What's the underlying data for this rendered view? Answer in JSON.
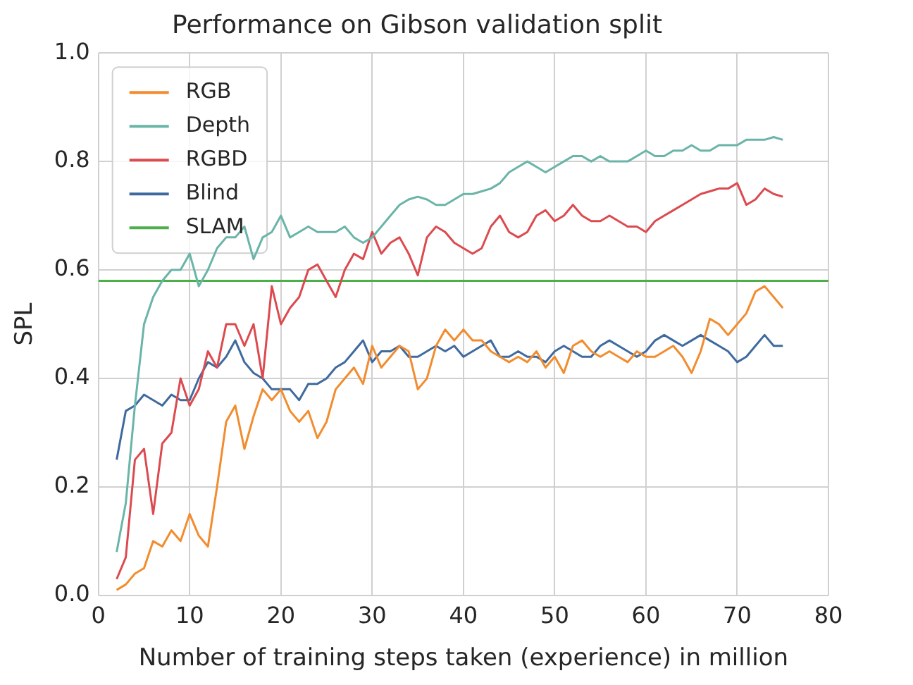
{
  "chart_data": {
    "type": "line",
    "title": "Performance on Gibson validation split",
    "xlabel": "Number of training steps taken (experience) in million",
    "ylabel": "SPL",
    "x": [
      2,
      3,
      4,
      5,
      6,
      7,
      8,
      9,
      10,
      11,
      12,
      13,
      14,
      15,
      16,
      17,
      18,
      19,
      20,
      21,
      22,
      23,
      24,
      25,
      26,
      27,
      28,
      29,
      30,
      31,
      32,
      33,
      34,
      35,
      36,
      37,
      38,
      39,
      40,
      41,
      42,
      43,
      44,
      45,
      46,
      47,
      48,
      49,
      50,
      51,
      52,
      53,
      54,
      55,
      56,
      57,
      58,
      59,
      60,
      61,
      62,
      63,
      64,
      65,
      66,
      67,
      68,
      69,
      70,
      71,
      72,
      73,
      74,
      75
    ],
    "series": [
      {
        "name": "RGB",
        "color": "#f28c2e",
        "values": [
          0.01,
          0.02,
          0.04,
          0.05,
          0.1,
          0.09,
          0.12,
          0.1,
          0.15,
          0.11,
          0.09,
          0.2,
          0.32,
          0.35,
          0.27,
          0.33,
          0.38,
          0.36,
          0.38,
          0.34,
          0.32,
          0.34,
          0.29,
          0.32,
          0.38,
          0.4,
          0.42,
          0.39,
          0.46,
          0.42,
          0.44,
          0.46,
          0.45,
          0.38,
          0.4,
          0.46,
          0.49,
          0.47,
          0.49,
          0.47,
          0.47,
          0.45,
          0.44,
          0.43,
          0.44,
          0.43,
          0.45,
          0.42,
          0.44,
          0.41,
          0.46,
          0.47,
          0.45,
          0.44,
          0.45,
          0.44,
          0.43,
          0.45,
          0.44,
          0.44,
          0.45,
          0.46,
          0.44,
          0.41,
          0.45,
          0.51,
          0.5,
          0.48,
          0.5,
          0.52,
          0.56,
          0.57,
          0.55,
          0.53
        ]
      },
      {
        "name": "Depth",
        "color": "#6ab4a8",
        "values": [
          0.08,
          0.17,
          0.35,
          0.5,
          0.55,
          0.58,
          0.6,
          0.6,
          0.63,
          0.57,
          0.6,
          0.64,
          0.66,
          0.66,
          0.68,
          0.62,
          0.66,
          0.67,
          0.7,
          0.66,
          0.67,
          0.68,
          0.67,
          0.67,
          0.67,
          0.68,
          0.66,
          0.65,
          0.66,
          0.68,
          0.7,
          0.72,
          0.73,
          0.735,
          0.73,
          0.72,
          0.72,
          0.73,
          0.74,
          0.74,
          0.745,
          0.75,
          0.76,
          0.78,
          0.79,
          0.8,
          0.79,
          0.78,
          0.79,
          0.8,
          0.81,
          0.81,
          0.8,
          0.81,
          0.8,
          0.8,
          0.8,
          0.81,
          0.82,
          0.81,
          0.81,
          0.82,
          0.82,
          0.83,
          0.82,
          0.82,
          0.83,
          0.83,
          0.83,
          0.84,
          0.84,
          0.84,
          0.845,
          0.84
        ]
      },
      {
        "name": "RGBD",
        "color": "#dc4a4f",
        "values": [
          0.03,
          0.07,
          0.25,
          0.27,
          0.15,
          0.28,
          0.3,
          0.4,
          0.35,
          0.38,
          0.45,
          0.42,
          0.5,
          0.5,
          0.46,
          0.5,
          0.4,
          0.57,
          0.5,
          0.53,
          0.55,
          0.6,
          0.61,
          0.58,
          0.55,
          0.6,
          0.63,
          0.62,
          0.67,
          0.63,
          0.65,
          0.66,
          0.63,
          0.59,
          0.66,
          0.68,
          0.67,
          0.65,
          0.64,
          0.63,
          0.64,
          0.68,
          0.7,
          0.67,
          0.66,
          0.67,
          0.7,
          0.71,
          0.69,
          0.7,
          0.72,
          0.7,
          0.69,
          0.69,
          0.7,
          0.69,
          0.68,
          0.68,
          0.67,
          0.69,
          0.7,
          0.71,
          0.72,
          0.73,
          0.74,
          0.745,
          0.75,
          0.75,
          0.76,
          0.72,
          0.73,
          0.75,
          0.74,
          0.735
        ]
      },
      {
        "name": "Blind",
        "color": "#3f6a9f",
        "values": [
          0.25,
          0.34,
          0.35,
          0.37,
          0.36,
          0.35,
          0.37,
          0.36,
          0.36,
          0.4,
          0.43,
          0.42,
          0.44,
          0.47,
          0.43,
          0.41,
          0.4,
          0.38,
          0.38,
          0.38,
          0.36,
          0.39,
          0.39,
          0.4,
          0.42,
          0.43,
          0.45,
          0.47,
          0.43,
          0.45,
          0.45,
          0.46,
          0.44,
          0.44,
          0.45,
          0.46,
          0.45,
          0.46,
          0.44,
          0.45,
          0.46,
          0.47,
          0.44,
          0.44,
          0.45,
          0.44,
          0.44,
          0.43,
          0.45,
          0.46,
          0.45,
          0.44,
          0.44,
          0.46,
          0.47,
          0.46,
          0.45,
          0.44,
          0.45,
          0.47,
          0.48,
          0.47,
          0.46,
          0.47,
          0.48,
          0.47,
          0.46,
          0.45,
          0.43,
          0.44,
          0.46,
          0.48,
          0.46,
          0.46
        ]
      },
      {
        "name": "SLAM",
        "color": "#4daf4a",
        "x": [
          0,
          80
        ],
        "values": [
          0.58,
          0.58
        ]
      }
    ],
    "xlim": [
      0,
      80
    ],
    "ylim": [
      0,
      1
    ],
    "xticks": [
      0,
      10,
      20,
      30,
      40,
      50,
      60,
      70,
      80
    ],
    "yticks": [
      {
        "value": 0,
        "label": "0.0"
      },
      {
        "value": 0.2,
        "label": "0.2"
      },
      {
        "value": 0.4,
        "label": "0.4"
      },
      {
        "value": 0.6,
        "label": "0.6"
      },
      {
        "value": 0.8,
        "label": "0.8"
      },
      {
        "value": 1,
        "label": "1.0"
      }
    ],
    "grid": true,
    "legend": "top left",
    "marker": "none",
    "line_style": "solid"
  }
}
